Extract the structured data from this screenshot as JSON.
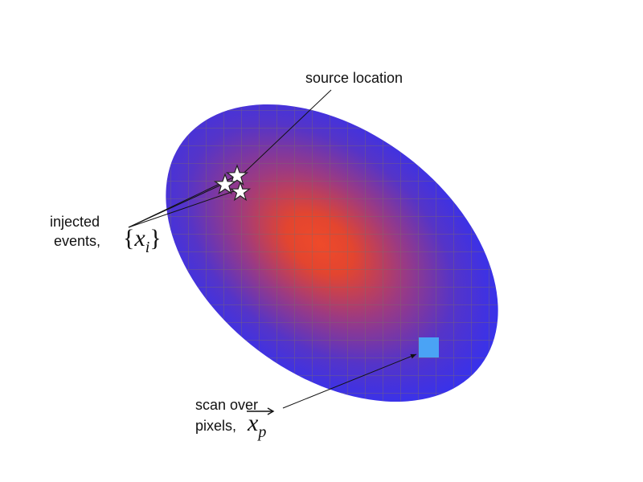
{
  "labels": {
    "source_location": "source location",
    "injected_line1": "injected",
    "injected_line2": "events,",
    "injected_math_var": "x",
    "injected_math_sub": "i",
    "scan_line1": "scan over",
    "scan_line2": "pixels,",
    "scan_math_var": "x",
    "scan_math_sub": "p"
  },
  "colors": {
    "map_edge": "#3431f0",
    "hotspot": "#ef4a2a",
    "mid": "#8a3a9a",
    "grid": "#7a6a6a",
    "pixel": "#4aa3f5",
    "annotation": "#111111",
    "star_fill": "#ffffff",
    "star_stroke": "#222222"
  },
  "icons": {
    "events": "star-icon",
    "scan_pixel": "square-pixel-icon"
  }
}
